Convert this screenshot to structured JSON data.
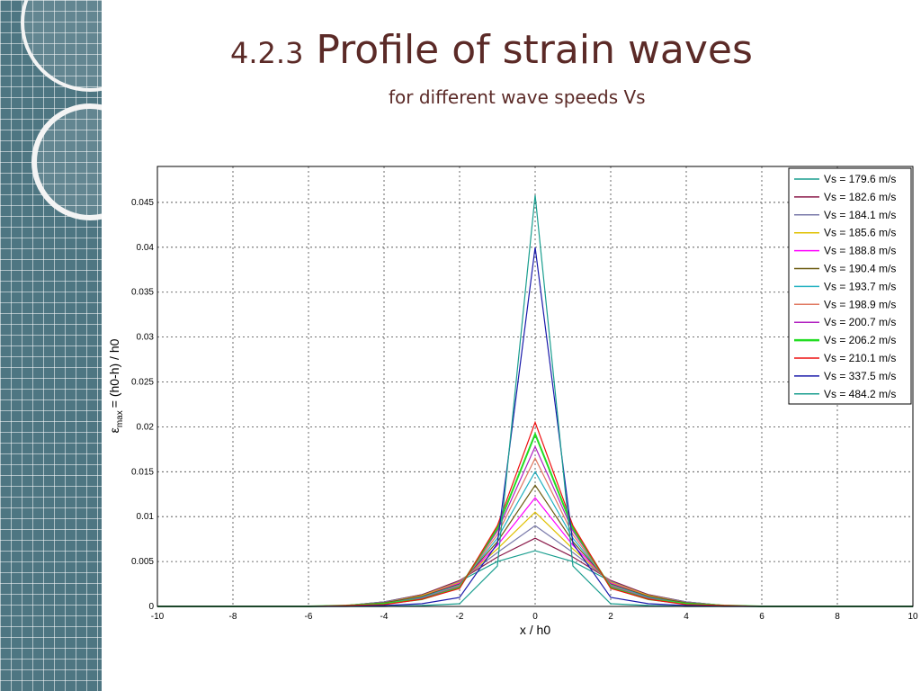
{
  "slide": {
    "title_number": "4.2.3",
    "title_text": "Profile of strain waves",
    "subtitle": "for different wave speeds Vs"
  },
  "chart_data": {
    "type": "line",
    "xlabel": "x / h0",
    "ylabel_symbol": "ε",
    "ylabel_subscript": "max",
    "ylabel_rest": "= (h0-h) / h0",
    "xlim": [
      -10,
      10
    ],
    "ylim": [
      0,
      0.049
    ],
    "x_ticks": [
      -10,
      -8,
      -6,
      -4,
      -2,
      0,
      2,
      4,
      6,
      8,
      10
    ],
    "y_ticks": [
      0,
      0.005,
      0.01,
      0.015,
      0.02,
      0.025,
      0.03,
      0.035,
      0.04,
      0.045
    ],
    "y_tick_labels": [
      "0",
      "0.005",
      "0.01",
      "0.015",
      "0.02",
      "0.025",
      "0.03",
      "0.035",
      "0.04",
      "0.045"
    ],
    "grid": true,
    "legend_position": "top-right",
    "x": [
      -10,
      -9,
      -8,
      -7,
      -6,
      -5,
      -4,
      -3,
      -2,
      -1,
      0,
      1,
      2,
      3,
      4,
      5,
      6,
      7,
      8,
      9,
      10
    ],
    "series": [
      {
        "name": "Vs = 179.6 m/s",
        "color": "#1a9e8f",
        "values": [
          0,
          0,
          0,
          0,
          0,
          0.0001,
          0.0005,
          0.0013,
          0.0028,
          0.005,
          0.0062,
          0.005,
          0.0028,
          0.0013,
          0.0005,
          0.0001,
          0,
          0,
          0,
          0,
          0
        ]
      },
      {
        "name": "Vs = 182.6 m/s",
        "color": "#8b1a4a",
        "values": [
          0,
          0,
          0,
          0,
          0,
          0.0001,
          0.0005,
          0.0013,
          0.0029,
          0.0055,
          0.0076,
          0.0055,
          0.0029,
          0.0013,
          0.0005,
          0.0001,
          0,
          0,
          0,
          0,
          0
        ]
      },
      {
        "name": "Vs = 184.1 m/s",
        "color": "#7a7aaa",
        "values": [
          0,
          0,
          0,
          0,
          0,
          0.0001,
          0.0005,
          0.0012,
          0.0028,
          0.006,
          0.009,
          0.006,
          0.0028,
          0.0012,
          0.0005,
          0.0001,
          0,
          0,
          0,
          0,
          0
        ]
      },
      {
        "name": "Vs = 185.6 m/s",
        "color": "#e0c000",
        "values": [
          0,
          0,
          0,
          0,
          0,
          0.0001,
          0.0004,
          0.0012,
          0.0027,
          0.0064,
          0.0105,
          0.0064,
          0.0027,
          0.0012,
          0.0004,
          0.0001,
          0,
          0,
          0,
          0,
          0
        ]
      },
      {
        "name": "Vs = 188.8 m/s",
        "color": "#ff00ff",
        "values": [
          0,
          0,
          0,
          0,
          0,
          0.0001,
          0.0004,
          0.0011,
          0.0026,
          0.0068,
          0.0121,
          0.0068,
          0.0026,
          0.0011,
          0.0004,
          0.0001,
          0,
          0,
          0,
          0,
          0
        ]
      },
      {
        "name": "Vs = 190.4 m/s",
        "color": "#6b5a10",
        "values": [
          0,
          0,
          0,
          0,
          0,
          0.0001,
          0.0004,
          0.0011,
          0.0025,
          0.0072,
          0.0135,
          0.0072,
          0.0025,
          0.0011,
          0.0004,
          0.0001,
          0,
          0,
          0,
          0,
          0
        ]
      },
      {
        "name": "Vs = 193.7 m/s",
        "color": "#20b0c0",
        "values": [
          0,
          0,
          0,
          0,
          0,
          0.0001,
          0.0003,
          0.001,
          0.0024,
          0.0076,
          0.015,
          0.0076,
          0.0024,
          0.001,
          0.0003,
          0.0001,
          0,
          0,
          0,
          0,
          0
        ]
      },
      {
        "name": "Vs = 198.9 m/s",
        "color": "#e07860",
        "values": [
          0,
          0,
          0,
          0,
          0,
          0.0001,
          0.0003,
          0.0009,
          0.0023,
          0.008,
          0.0165,
          0.008,
          0.0023,
          0.0009,
          0.0003,
          0.0001,
          0,
          0,
          0,
          0,
          0
        ]
      },
      {
        "name": "Vs = 200.7 m/s",
        "color": "#b020c0",
        "values": [
          0,
          0,
          0,
          0,
          0,
          0.0001,
          0.0003,
          0.0009,
          0.0022,
          0.0084,
          0.0178,
          0.0084,
          0.0022,
          0.0009,
          0.0003,
          0.0001,
          0,
          0,
          0,
          0,
          0
        ]
      },
      {
        "name": "Vs = 206.2 m/s",
        "color": "#22dd22",
        "values": [
          0,
          0,
          0,
          0,
          0,
          0.0001,
          0.0003,
          0.0008,
          0.0021,
          0.0087,
          0.0192,
          0.0087,
          0.0021,
          0.0008,
          0.0003,
          0.0001,
          0,
          0,
          0,
          0,
          0
        ]
      },
      {
        "name": "Vs = 210.1 m/s",
        "color": "#ee1111",
        "values": [
          0,
          0,
          0,
          0,
          0,
          0.0001,
          0.0002,
          0.0008,
          0.002,
          0.009,
          0.0205,
          0.009,
          0.002,
          0.0008,
          0.0002,
          0.0001,
          0,
          0,
          0,
          0,
          0
        ]
      },
      {
        "name": "Vs = 337.5 m/s",
        "color": "#1a1aaa",
        "values": [
          0,
          0,
          0,
          0,
          0,
          0,
          0.0001,
          0.0003,
          0.001,
          0.007,
          0.04,
          0.007,
          0.001,
          0.0003,
          0.0001,
          0,
          0,
          0,
          0,
          0,
          0
        ]
      },
      {
        "name": "Vs = 484.2 m/s",
        "color": "#1a9e8f",
        "values": [
          0,
          0,
          0,
          0,
          0,
          0,
          0,
          0.0001,
          0.0003,
          0.0045,
          0.0458,
          0.0045,
          0.0003,
          0.0001,
          0,
          0,
          0,
          0,
          0,
          0,
          0
        ]
      }
    ]
  }
}
